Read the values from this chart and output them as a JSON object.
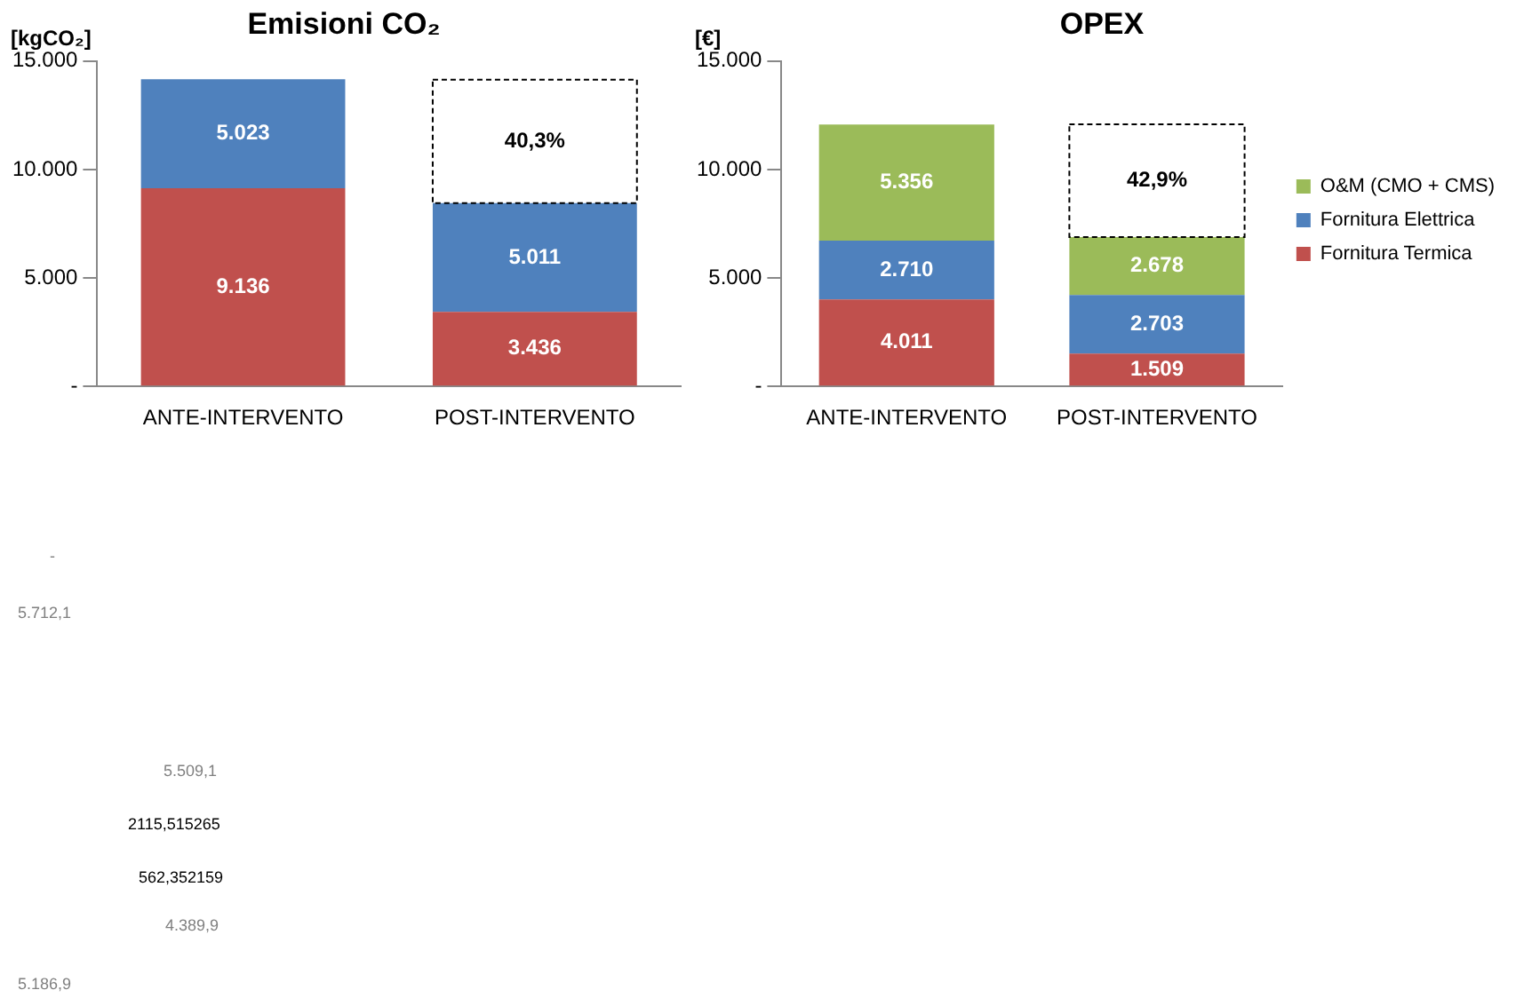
{
  "chart_data": [
    {
      "type": "bar",
      "title": "Emisioni CO₂",
      "ylabel": "[kgCO₂]",
      "stacked": true,
      "categories": [
        "ANTE-INTERVENTO",
        "POST-INTERVENTO"
      ],
      "series": [
        {
          "color": "#c0504d",
          "values": [
            9136,
            3436
          ],
          "value_labels": [
            "9.136",
            "3.436"
          ]
        },
        {
          "color": "#4f81bd",
          "values": [
            5023,
            5011
          ],
          "value_labels": [
            "5.023",
            "5.011"
          ]
        },
        {
          "color": "#ffffff",
          "line_style": "dashed",
          "values": [
            null,
            5700
          ]
        }
      ],
      "annotations": [
        "40,3%"
      ],
      "ylim": [
        0,
        15000
      ],
      "yticks": [
        {
          "value": 0,
          "label": "-"
        },
        {
          "value": 5000,
          "label": "5.000"
        },
        {
          "value": 10000,
          "label": "10.000"
        },
        {
          "value": 15000,
          "label": "15.000"
        }
      ],
      "grid": false,
      "legend": false
    },
    {
      "type": "bar",
      "title": "OPEX",
      "ylabel": "[€]",
      "stacked": true,
      "categories": [
        "ANTE-INTERVENTO",
        "POST-INTERVENTO"
      ],
      "series": [
        {
          "name": "Fornitura Termica",
          "color": "#c0504d",
          "values": [
            4011,
            1509
          ],
          "value_labels": [
            "4.011",
            "1.509"
          ]
        },
        {
          "name": "Fornitura Elettrica",
          "color": "#4f81bd",
          "values": [
            2710,
            2703
          ],
          "value_labels": [
            "2.710",
            "2.703"
          ]
        },
        {
          "name": "O&M (CMO + CMS)",
          "color": "#9bbb59",
          "values": [
            5356,
            2678
          ],
          "value_labels": [
            "5.356",
            "2.678"
          ]
        },
        {
          "color": "#ffffff",
          "line_style": "dashed",
          "values": [
            null,
            5200
          ]
        }
      ],
      "annotations": [
        "42,9%"
      ],
      "ylim": [
        0,
        15000
      ],
      "yticks": [
        {
          "value": 0,
          "label": "-"
        },
        {
          "value": 5000,
          "label": "5.000"
        },
        {
          "value": 10000,
          "label": "10.000"
        },
        {
          "value": 15000,
          "label": "15.000"
        }
      ],
      "grid": false,
      "legend": "right"
    },
    {
      "type": "other",
      "annotations": [
        "-",
        "5.712,1",
        "5.509,1",
        "2115,515265",
        "562,352159",
        "4.389,9",
        "5.186,9"
      ]
    }
  ]
}
